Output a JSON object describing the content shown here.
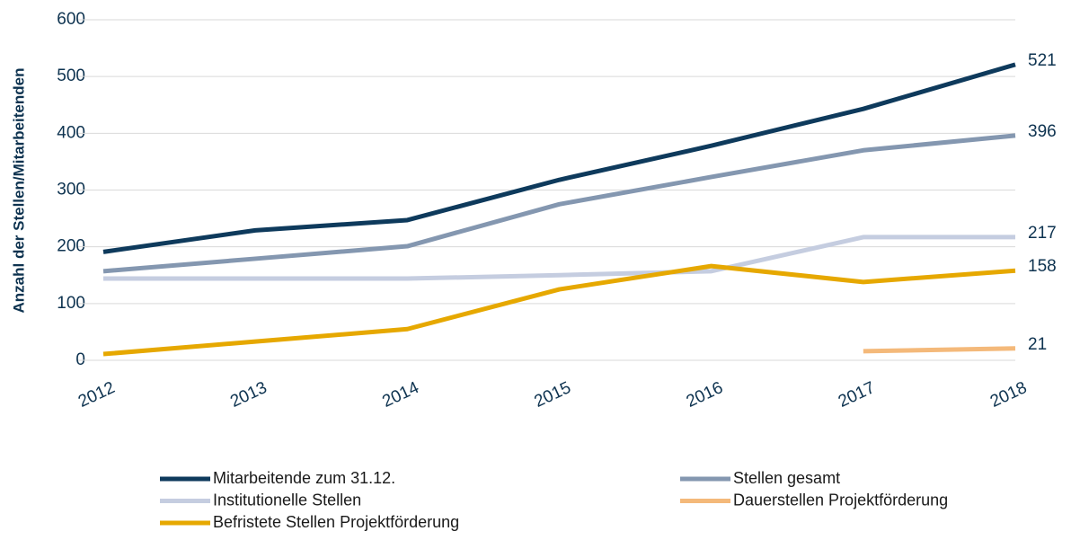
{
  "chart_data": {
    "type": "line",
    "y_label": "Anzahl der Stellen/Mitarbeitenden",
    "categories": [
      "2012",
      "2013",
      "2014",
      "2015",
      "2016",
      "2017",
      "2018"
    ],
    "series": [
      {
        "name": "Mitarbeitende zum 31.12.",
        "color": "#0e3a5c",
        "values": [
          191,
          229,
          247,
          318,
          378,
          443,
          521
        ]
      },
      {
        "name": "Stellen gesamt",
        "color": "#8497b0",
        "values": [
          157,
          179,
          201,
          275,
          323,
          370,
          396
        ]
      },
      {
        "name": "Institutionelle Stellen",
        "color": "#c5cde0",
        "values": [
          144,
          144,
          144,
          150,
          157,
          217,
          217
        ]
      },
      {
        "name": "Dauerstellen Projektförderung",
        "color": "#f4b97a",
        "values": [
          null,
          null,
          null,
          null,
          null,
          16,
          21
        ]
      },
      {
        "name": "Befristete Stellen Projektförderung",
        "color": "#e6a800",
        "values": [
          11,
          33,
          55,
          125,
          166,
          138,
          158
        ]
      }
    ],
    "ylim": [
      0,
      600
    ],
    "yticks": [
      0,
      100,
      200,
      300,
      400,
      500,
      600
    ],
    "grid": true,
    "legend": "bottom"
  }
}
